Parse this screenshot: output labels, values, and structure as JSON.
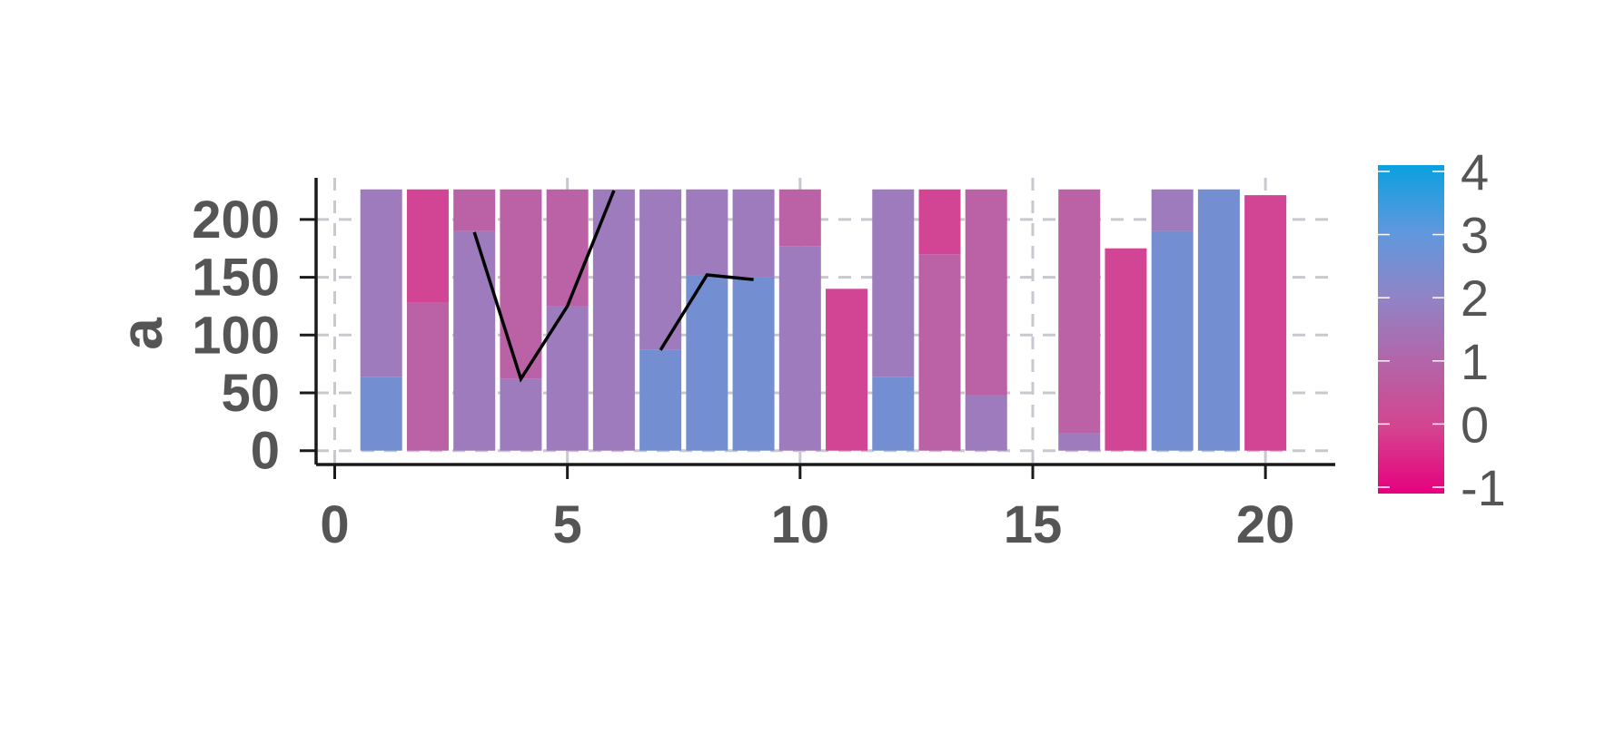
{
  "chart_data": {
    "type": "bar",
    "title": "",
    "xlabel": "",
    "ylabel": "a",
    "xlim": [
      -0.4,
      21.5
    ],
    "ylim": [
      -12,
      236
    ],
    "xticks": [
      0,
      5,
      10,
      15,
      20
    ],
    "yticks": [
      0,
      50,
      100,
      150,
      200
    ],
    "grid": true,
    "x": [
      1,
      2,
      3,
      4,
      5,
      6,
      7,
      8,
      9,
      10,
      11,
      12,
      13,
      14,
      15,
      16,
      17,
      18,
      19,
      20
    ],
    "stacked_segments": [
      [
        {
          "value": 64,
          "color": 3
        },
        {
          "value": 162,
          "color": 2
        }
      ],
      [
        {
          "value": 128,
          "color": 1
        },
        {
          "value": 98,
          "color": 0
        }
      ],
      [
        {
          "value": 190,
          "color": 2
        },
        {
          "value": 36,
          "color": 1
        }
      ],
      [
        {
          "value": 62,
          "color": 2
        },
        {
          "value": 164,
          "color": 1
        }
      ],
      [
        {
          "value": 125,
          "color": 2
        },
        {
          "value": 101,
          "color": 1
        }
      ],
      [
        {
          "value": 226,
          "color": 2
        }
      ],
      [
        {
          "value": 87,
          "color": 3
        },
        {
          "value": 139,
          "color": 2
        }
      ],
      [
        {
          "value": 152,
          "color": 3
        },
        {
          "value": 74,
          "color": 2
        }
      ],
      [
        {
          "value": 150,
          "color": 3
        },
        {
          "value": 76,
          "color": 2
        }
      ],
      [
        {
          "value": 177,
          "color": 2
        },
        {
          "value": 49,
          "color": 1
        }
      ],
      [
        {
          "value": 140,
          "color": 0
        }
      ],
      [
        {
          "value": 64,
          "color": 3
        },
        {
          "value": 162,
          "color": 2
        }
      ],
      [
        {
          "value": 170,
          "color": 1
        },
        {
          "value": 56,
          "color": 0
        }
      ],
      [
        {
          "value": 48,
          "color": 2
        },
        {
          "value": 178,
          "color": 1
        }
      ],
      [],
      [
        {
          "value": 15,
          "color": 2
        },
        {
          "value": 211,
          "color": 1
        }
      ],
      [
        {
          "value": 175,
          "color": 0
        }
      ],
      [
        {
          "value": 190,
          "color": 3
        },
        {
          "value": 36,
          "color": 2
        }
      ],
      [
        {
          "value": 226,
          "color": 3
        }
      ],
      [
        {
          "value": 221,
          "color": 0
        }
      ]
    ],
    "line_series": [
      [
        {
          "x": 3,
          "y": 189
        },
        {
          "x": 4,
          "y": 62
        },
        {
          "x": 5,
          "y": 125
        },
        {
          "x": 6,
          "y": 225
        }
      ],
      [
        {
          "x": 7,
          "y": 87
        },
        {
          "x": 8,
          "y": 152
        },
        {
          "x": 9,
          "y": 148
        }
      ]
    ],
    "colorbar": {
      "range": [
        -1,
        4.2
      ],
      "ticks": [
        "-1",
        "0",
        "1",
        "2",
        "3",
        "4"
      ],
      "tick_values": [
        -1,
        0,
        1,
        2,
        3,
        4
      ],
      "gradient_stops": [
        "#e6007e",
        "#d4448f",
        "#b365a8",
        "#8f84c6",
        "#5e98dd",
        "#0aa0e0"
      ]
    },
    "bar_colors": [
      "#d14594",
      "#bb61a6",
      "#9d7bbc",
      "#748fd1"
    ]
  }
}
